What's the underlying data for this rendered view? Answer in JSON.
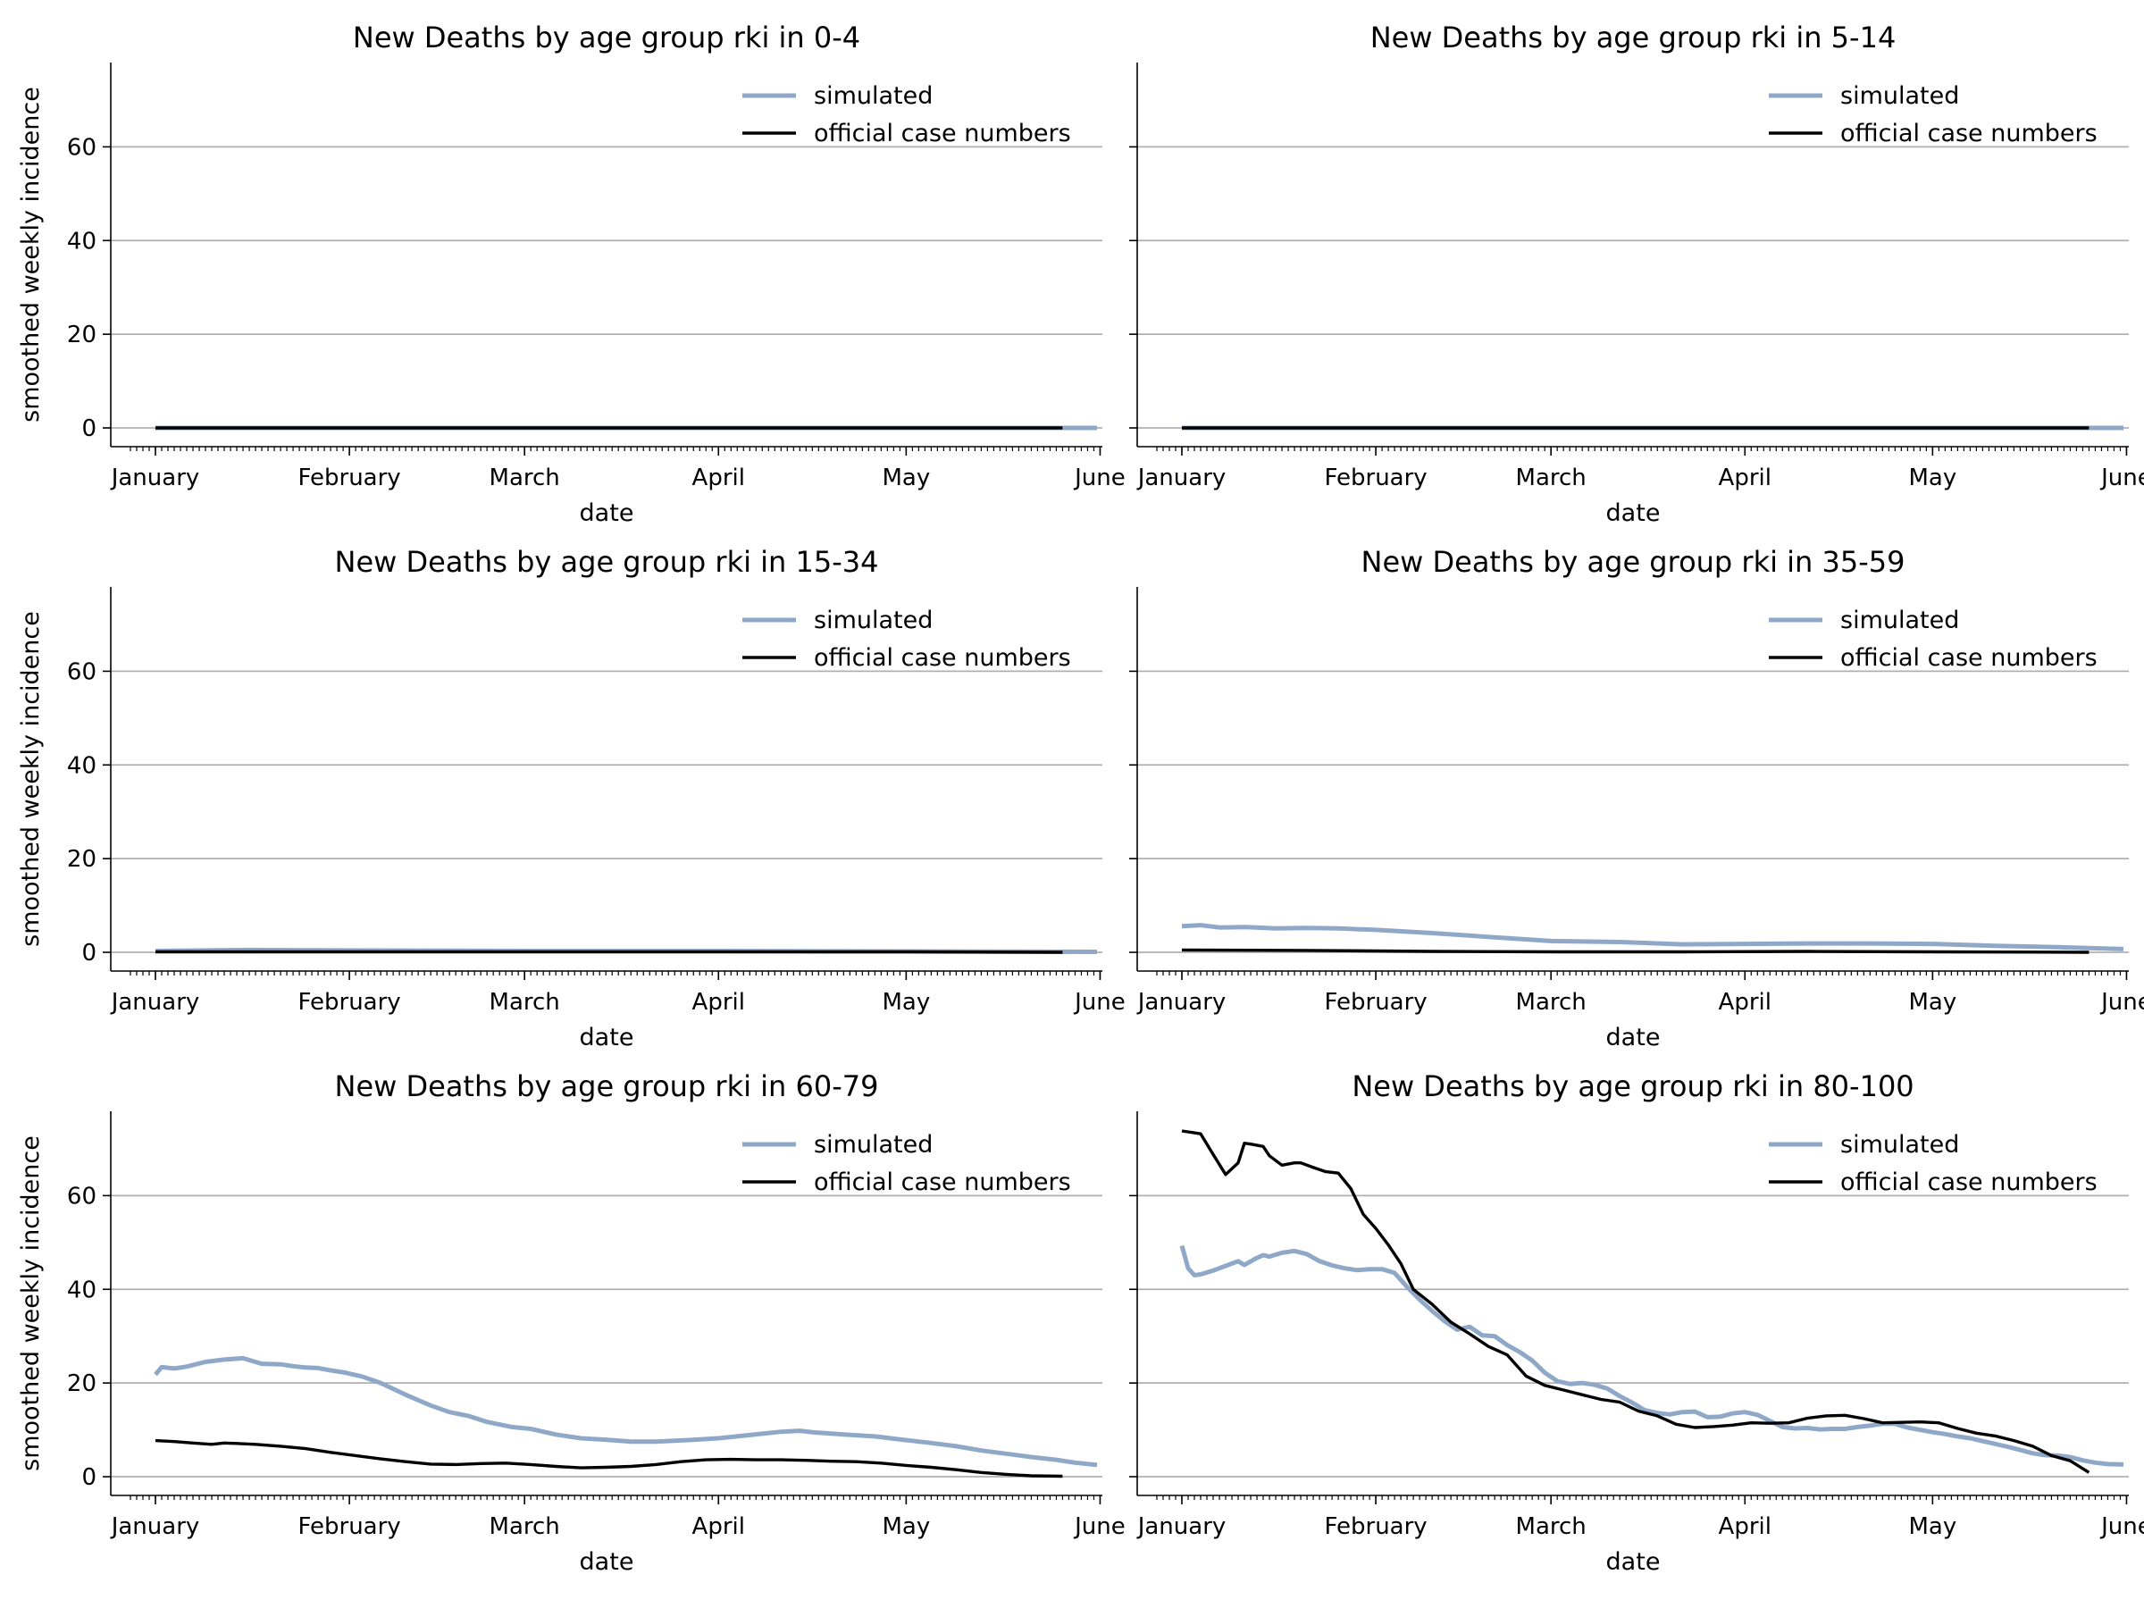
{
  "chart_data": [
    {
      "type": "line",
      "title": "New Deaths by age group rki in 0-4",
      "xlabel": "date",
      "ylabel": "smoothed weekly incidence",
      "ylim": [
        -4,
        78
      ],
      "yticks": [
        0,
        20,
        40,
        60
      ],
      "xticks": [
        "January",
        "February",
        "March",
        "April",
        "May",
        "June"
      ],
      "grid": "horizontal",
      "legend_position": "top-right",
      "series": [
        {
          "name": "simulated",
          "color": "#8fa8c8",
          "x": [
            0,
            150.5
          ],
          "y": [
            0,
            0
          ]
        },
        {
          "name": "official case numbers",
          "color": "#000000",
          "x": [
            0,
            145
          ],
          "y": [
            0,
            0
          ]
        }
      ]
    },
    {
      "type": "line",
      "title": "New Deaths by age group rki in 5-14",
      "xlabel": "date",
      "ylabel": "",
      "ylim": [
        -4,
        78
      ],
      "yticks": [
        0,
        20,
        40,
        60
      ],
      "xticks": [
        "January",
        "February",
        "March",
        "April",
        "May",
        "June"
      ],
      "grid": "horizontal",
      "legend_position": "top-right",
      "series": [
        {
          "name": "simulated",
          "color": "#8fa8c8",
          "x": [
            0,
            150.5
          ],
          "y": [
            0,
            0
          ]
        },
        {
          "name": "official case numbers",
          "color": "#000000",
          "x": [
            0,
            145
          ],
          "y": [
            0,
            0
          ]
        }
      ]
    },
    {
      "type": "line",
      "title": "New Deaths by age group rki in 15-34",
      "xlabel": "date",
      "ylabel": "smoothed weekly incidence",
      "ylim": [
        -4,
        78
      ],
      "yticks": [
        0,
        20,
        40,
        60
      ],
      "xticks": [
        "January",
        "February",
        "March",
        "April",
        "May",
        "June"
      ],
      "grid": "horizontal",
      "legend_position": "top-right",
      "series": [
        {
          "name": "simulated",
          "color": "#8fa8c8",
          "x": [
            0,
            15,
            30,
            60,
            90,
            120,
            150.5
          ],
          "y": [
            0.3,
            0.5,
            0.4,
            0.3,
            0.3,
            0.2,
            0.1
          ]
        },
        {
          "name": "official case numbers",
          "color": "#000000",
          "x": [
            0,
            30,
            60,
            90,
            120,
            145
          ],
          "y": [
            0.1,
            0.1,
            0.1,
            0.1,
            0.1,
            0
          ]
        }
      ]
    },
    {
      "type": "line",
      "title": "New Deaths by age group rki in 35-59",
      "xlabel": "date",
      "ylabel": "",
      "ylim": [
        -4,
        78
      ],
      "yticks": [
        0,
        20,
        40,
        60
      ],
      "xticks": [
        "January",
        "February",
        "March",
        "April",
        "May",
        "June"
      ],
      "grid": "horizontal",
      "legend_position": "top-right",
      "series": [
        {
          "name": "simulated",
          "color": "#8fa8c8",
          "x": [
            0,
            3,
            6,
            10,
            15,
            20,
            25,
            31,
            40,
            50,
            59,
            70,
            80,
            90,
            100,
            110,
            120,
            130,
            140,
            150.5
          ],
          "y": [
            5.6,
            5.8,
            5.3,
            5.4,
            5.1,
            5.2,
            5.1,
            4.8,
            4.1,
            3.2,
            2.4,
            2.2,
            1.7,
            1.8,
            1.9,
            1.9,
            1.8,
            1.4,
            1.1,
            0.7
          ]
        },
        {
          "name": "official case numbers",
          "color": "#000000",
          "x": [
            0,
            20,
            40,
            60,
            80,
            100,
            120,
            145
          ],
          "y": [
            0.5,
            0.4,
            0.2,
            0.1,
            0.1,
            0.2,
            0.1,
            0
          ]
        }
      ]
    },
    {
      "type": "line",
      "title": "New Deaths by age group rki in 60-79",
      "xlabel": "date",
      "ylabel": "smoothed weekly incidence",
      "ylim": [
        -4,
        78
      ],
      "yticks": [
        0,
        20,
        40,
        60
      ],
      "xticks": [
        "January",
        "February",
        "March",
        "April",
        "May",
        "June"
      ],
      "grid": "horizontal",
      "legend_position": "top-right",
      "series": [
        {
          "name": "simulated",
          "color": "#8fa8c8",
          "x": [
            0,
            1,
            3,
            5,
            8,
            11,
            14,
            17,
            20,
            22,
            24,
            26,
            28,
            30,
            33,
            36,
            40,
            44,
            47,
            50,
            53,
            57,
            60,
            64,
            68,
            72,
            76,
            80,
            85,
            90,
            95,
            100,
            103,
            105,
            110,
            115,
            120,
            124,
            128,
            132,
            136,
            140,
            144,
            147,
            150.5
          ],
          "y": [
            21.8,
            23.4,
            23.1,
            23.5,
            24.5,
            25.0,
            25.3,
            24.1,
            24.0,
            23.6,
            23.3,
            23.2,
            22.7,
            22.3,
            21.4,
            20.0,
            17.5,
            15.2,
            13.8,
            13.0,
            11.7,
            10.6,
            10.2,
            9.0,
            8.2,
            7.9,
            7.5,
            7.5,
            7.8,
            8.2,
            8.9,
            9.6,
            9.8,
            9.5,
            9.0,
            8.6,
            7.8,
            7.2,
            6.5,
            5.6,
            4.9,
            4.2,
            3.6,
            3.0,
            2.5
          ]
        },
        {
          "name": "official case numbers",
          "color": "#000000",
          "x": [
            0,
            3,
            6,
            9,
            11,
            13,
            16,
            20,
            24,
            28,
            32,
            36,
            40,
            44,
            48,
            52,
            56,
            60,
            64,
            68,
            72,
            76,
            80,
            84,
            88,
            92,
            96,
            100,
            104,
            108,
            112,
            116,
            120,
            124,
            128,
            132,
            136,
            140,
            145
          ],
          "y": [
            7.7,
            7.5,
            7.2,
            6.9,
            7.2,
            7.1,
            6.9,
            6.5,
            6.0,
            5.2,
            4.5,
            3.8,
            3.2,
            2.7,
            2.6,
            2.8,
            2.9,
            2.6,
            2.2,
            1.9,
            2.0,
            2.2,
            2.6,
            3.2,
            3.6,
            3.7,
            3.6,
            3.6,
            3.5,
            3.3,
            3.2,
            2.9,
            2.4,
            2.0,
            1.5,
            0.9,
            0.5,
            0.2,
            0.1
          ]
        }
      ]
    },
    {
      "type": "line",
      "title": "New Deaths by age group rki in 80-100",
      "xlabel": "date",
      "ylabel": "",
      "ylim": [
        -4,
        78
      ],
      "yticks": [
        0,
        20,
        40,
        60
      ],
      "xticks": [
        "January",
        "February",
        "March",
        "April",
        "May",
        "June"
      ],
      "grid": "horizontal",
      "legend_position": "top-right",
      "series": [
        {
          "name": "simulated",
          "color": "#8fa8c8",
          "x": [
            0,
            1,
            2,
            3,
            5,
            7,
            9,
            10,
            12,
            13,
            14,
            16,
            18,
            20,
            22,
            24,
            26,
            28,
            30,
            32,
            34,
            36,
            38,
            40,
            42,
            44,
            46,
            48,
            50,
            52,
            54,
            56,
            58,
            60,
            62,
            64,
            66,
            68,
            70,
            72,
            74,
            76,
            78,
            80,
            82,
            84,
            86,
            88,
            90,
            92,
            94,
            96,
            98,
            100,
            102,
            104,
            106,
            108,
            110,
            112,
            114,
            116,
            118,
            120,
            122,
            124,
            126,
            128,
            130,
            132,
            134,
            136,
            138,
            140,
            142,
            144,
            146,
            148,
            150.5
          ],
          "y": [
            49.3,
            44.5,
            43.0,
            43.2,
            44.0,
            45.0,
            46.0,
            45.2,
            46.7,
            47.3,
            47.0,
            47.8,
            48.2,
            47.5,
            46.0,
            45.1,
            44.5,
            44.1,
            44.3,
            44.3,
            43.5,
            40.5,
            37.8,
            35.4,
            33.2,
            31.4,
            32.0,
            30.2,
            30.0,
            28.1,
            26.6,
            24.8,
            22.2,
            20.4,
            19.8,
            20.0,
            19.6,
            18.8,
            17.2,
            15.8,
            14.2,
            13.6,
            13.3,
            13.8,
            13.9,
            12.7,
            12.8,
            13.5,
            13.8,
            13.2,
            11.9,
            10.6,
            10.3,
            10.4,
            10.1,
            10.2,
            10.2,
            10.6,
            10.9,
            11.3,
            11.3,
            10.5,
            10.0,
            9.5,
            9.1,
            8.6,
            8.2,
            7.6,
            7.0,
            6.4,
            5.7,
            5.0,
            4.6,
            4.5,
            4.2,
            3.5,
            3.0,
            2.7,
            2.6
          ]
        },
        {
          "name": "official case numbers",
          "color": "#000000",
          "x": [
            0,
            2,
            3,
            5,
            7,
            9,
            10,
            11,
            13,
            14,
            16,
            18,
            19,
            21,
            23,
            25,
            27,
            29,
            31,
            33,
            35,
            37,
            40,
            43,
            46,
            49,
            52,
            55,
            58,
            61,
            64,
            67,
            70,
            73,
            76,
            79,
            82,
            85,
            88,
            91,
            94,
            97,
            100,
            103,
            106,
            109,
            112,
            115,
            118,
            121,
            124,
            127,
            130,
            133,
            136,
            139,
            142,
            145
          ],
          "y": [
            73.8,
            73.4,
            73.2,
            68.8,
            64.5,
            67.0,
            71.2,
            71.0,
            70.5,
            68.5,
            66.5,
            67.0,
            67.0,
            66.0,
            65.1,
            64.8,
            61.5,
            56.0,
            53.0,
            49.5,
            45.5,
            40.0,
            36.8,
            33.0,
            30.5,
            27.8,
            26.0,
            21.5,
            19.5,
            18.5,
            17.5,
            16.5,
            15.9,
            14.0,
            13.0,
            11.2,
            10.5,
            10.7,
            11.0,
            11.5,
            11.4,
            11.5,
            12.5,
            13.0,
            13.1,
            12.4,
            11.5,
            11.6,
            11.7,
            11.5,
            10.3,
            9.3,
            8.7,
            7.7,
            6.5,
            4.5,
            3.4,
            0.9
          ]
        }
      ]
    }
  ]
}
